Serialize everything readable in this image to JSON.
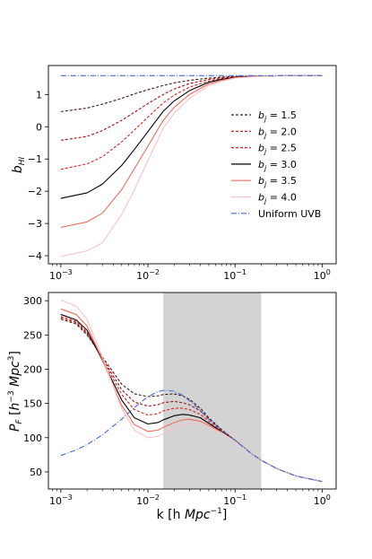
{
  "chart_data": [
    {
      "type": "line",
      "xscale": "log",
      "xlim": [
        0.00072,
        1.45
      ],
      "ylim": [
        -4.25,
        1.9
      ],
      "ylabel": "b_HI",
      "xlabel": "",
      "xtick_values": [
        0.001,
        0.01,
        0.1,
        1
      ],
      "xtick_labels": [
        "10^-3",
        "10^-2",
        "10^-1",
        "10^0"
      ],
      "ytick_values": [
        -4,
        -3,
        -2,
        -1,
        0,
        1
      ],
      "ytick_labels": [
        "−4",
        "−3",
        "−2",
        "−1",
        "0",
        "1"
      ],
      "grid": false,
      "legend_position": "center-right",
      "x": [
        0.001,
        0.002,
        0.003,
        0.005,
        0.007,
        0.01,
        0.015,
        0.02,
        0.03,
        0.05,
        0.07,
        0.1,
        0.2,
        0.3,
        0.5,
        1.0
      ],
      "series": [
        {
          "name": "b_j = 1.5",
          "color": "#3a1a12",
          "dash": "3,2",
          "values": [
            0.47,
            0.58,
            0.7,
            0.88,
            1.02,
            1.15,
            1.28,
            1.36,
            1.44,
            1.51,
            1.54,
            1.56,
            1.575,
            1.58,
            1.585,
            1.585
          ]
        },
        {
          "name": "b_j = 2.0",
          "color": "#a01010",
          "dash": "3,2",
          "values": [
            -0.42,
            -0.3,
            -0.12,
            0.2,
            0.45,
            0.72,
            1.0,
            1.17,
            1.34,
            1.47,
            1.52,
            1.55,
            1.575,
            1.58,
            1.585,
            1.585
          ]
        },
        {
          "name": "b_j = 2.5",
          "color": "#e02020",
          "dash": "3,2",
          "values": [
            -1.32,
            -1.15,
            -0.93,
            -0.47,
            -0.1,
            0.3,
            0.74,
            0.98,
            1.23,
            1.42,
            1.49,
            1.54,
            1.57,
            1.58,
            1.585,
            1.585
          ]
        },
        {
          "name": "b_j = 3.0",
          "color": "#000000",
          "dash": "",
          "values": [
            -2.22,
            -2.05,
            -1.78,
            -1.2,
            -0.7,
            -0.15,
            0.48,
            0.8,
            1.12,
            1.38,
            1.47,
            1.53,
            1.57,
            1.58,
            1.585,
            1.585
          ]
        },
        {
          "name": "b_j = 3.5",
          "color": "#f26b5b",
          "dash": "",
          "values": [
            -3.12,
            -2.95,
            -2.68,
            -1.95,
            -1.3,
            -0.6,
            0.2,
            0.6,
            1.0,
            1.33,
            1.44,
            1.52,
            1.57,
            1.58,
            1.585,
            1.585
          ]
        },
        {
          "name": "b_j = 4.0",
          "color": "#f9c2c8",
          "dash": "",
          "values": [
            -4.02,
            -3.85,
            -3.6,
            -2.72,
            -1.95,
            -1.05,
            -0.05,
            0.42,
            0.88,
            1.28,
            1.41,
            1.51,
            1.565,
            1.58,
            1.585,
            1.585
          ]
        },
        {
          "name": "Uniform UVB",
          "color": "#4169e1",
          "dash": "6,2,1,2",
          "values": [
            1.585,
            1.585,
            1.585,
            1.585,
            1.585,
            1.585,
            1.585,
            1.585,
            1.585,
            1.585,
            1.585,
            1.585,
            1.585,
            1.585,
            1.585,
            1.585
          ]
        }
      ]
    },
    {
      "type": "line",
      "xscale": "log",
      "xlim": [
        0.00072,
        1.45
      ],
      "ylim": [
        25,
        312
      ],
      "xlabel": "k [h Mpc^-1]",
      "ylabel": "P_F [h^-3 Mpc^3]",
      "xtick_values": [
        0.001,
        0.01,
        0.1,
        1
      ],
      "xtick_labels": [
        "10^-3",
        "10^-2",
        "10^-1",
        "10^0"
      ],
      "ytick_values": [
        50,
        100,
        150,
        200,
        250,
        300
      ],
      "ytick_labels": [
        "50",
        "100",
        "150",
        "200",
        "250",
        "300"
      ],
      "grid": false,
      "shaded_region_x": [
        0.015,
        0.2
      ],
      "x": [
        0.001,
        0.0015,
        0.002,
        0.003,
        0.005,
        0.007,
        0.01,
        0.013,
        0.015,
        0.02,
        0.025,
        0.03,
        0.04,
        0.05,
        0.07,
        0.1,
        0.15,
        0.2,
        0.3,
        0.5,
        1.0
      ],
      "series": [
        {
          "name": "b_j = 1.5",
          "color": "#3a1a12",
          "dash": "3,2",
          "values": [
            273,
            266,
            250,
            218,
            178,
            164,
            160,
            161,
            163,
            164,
            161,
            156,
            143,
            129,
            112,
            96,
            78,
            67,
            55,
            44,
            36
          ]
        },
        {
          "name": "b_j = 2.0",
          "color": "#a01010",
          "dash": "3,2",
          "values": [
            275,
            268,
            252,
            216,
            170,
            152,
            146,
            148,
            151,
            153,
            151,
            148,
            139,
            127,
            111,
            96,
            78,
            67,
            55,
            44,
            36
          ]
        },
        {
          "name": "b_j = 2.5",
          "color": "#e02020",
          "dash": "3,2",
          "values": [
            277,
            270,
            254,
            215,
            163,
            141,
            133,
            135,
            139,
            143,
            143,
            141,
            134,
            124,
            110,
            96,
            78,
            67,
            55,
            44,
            36
          ]
        },
        {
          "name": "b_j = 3.0",
          "color": "#000000",
          "dash": "",
          "values": [
            280,
            272,
            257,
            213,
            155,
            129,
            120,
            122,
            126,
            132,
            134,
            133,
            129,
            121,
            109,
            96,
            78,
            67,
            55,
            44,
            36
          ]
        },
        {
          "name": "b_j = 3.5",
          "color": "#f26b5b",
          "dash": "",
          "values": [
            288,
            280,
            263,
            214,
            147,
            119,
            109,
            111,
            115,
            122,
            126,
            127,
            124,
            118,
            108,
            95,
            78,
            67,
            55,
            44,
            36
          ]
        },
        {
          "name": "b_j = 4.0",
          "color": "#f9c2c8",
          "dash": "",
          "values": [
            301,
            292,
            273,
            218,
            142,
            111,
            100,
            102,
            106,
            114,
            119,
            121,
            120,
            115,
            107,
            95,
            78,
            67,
            55,
            44,
            36
          ]
        },
        {
          "name": "Uniform UVB",
          "color": "#4169e1",
          "dash": "6,2,1,2",
          "values": [
            74,
            82,
            90,
            104,
            127,
            144,
            160,
            167,
            169,
            168,
            162,
            154,
            140,
            127,
            111,
            96,
            78,
            67,
            55,
            44,
            36
          ]
        }
      ]
    }
  ]
}
